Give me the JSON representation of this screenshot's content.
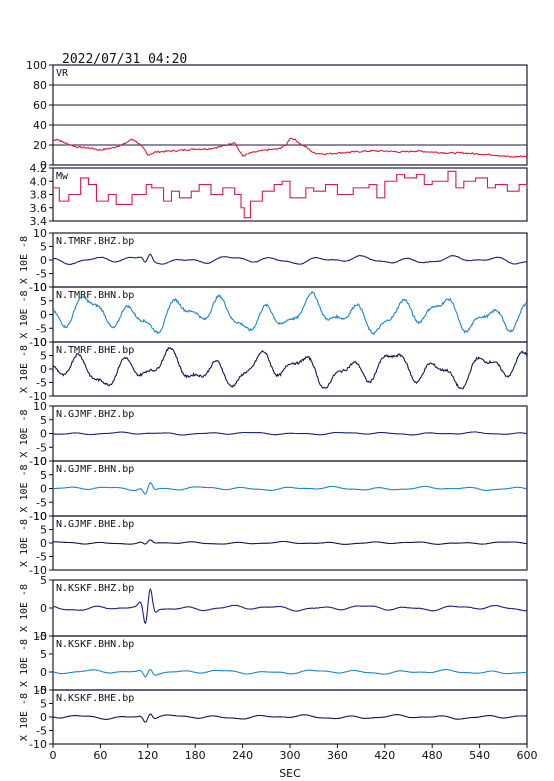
{
  "header": {
    "datetime": "2022/07/31 04:20"
  },
  "chart_data": {
    "type": "line",
    "xlabel": "SEC",
    "xlim": [
      0,
      600
    ],
    "xticks": [
      0,
      60,
      120,
      180,
      240,
      300,
      360,
      420,
      480,
      540,
      600
    ],
    "panels": [
      {
        "name": "VR",
        "ylabel": "",
        "ylim": [
          0,
          100
        ],
        "yticks": [
          0,
          20,
          40,
          60,
          80,
          100
        ],
        "ytick_labels": [
          "0",
          "20",
          "40",
          "60",
          "80",
          "100"
        ],
        "grid": true,
        "color": "#d81b46",
        "step": false,
        "x": [
          0,
          5,
          15,
          30,
          45,
          60,
          75,
          90,
          100,
          108,
          115,
          120,
          130,
          150,
          165,
          180,
          195,
          210,
          220,
          230,
          235,
          240,
          250,
          270,
          285,
          295,
          300,
          305,
          315,
          320,
          330,
          345,
          360,
          380,
          400,
          420,
          440,
          460,
          480,
          500,
          520,
          540,
          560,
          580,
          600
        ],
        "values": [
          24,
          26,
          22,
          18,
          17,
          15,
          17,
          21,
          26,
          22,
          16,
          10,
          13,
          14,
          15,
          16,
          16,
          18,
          20,
          23,
          15,
          9,
          12,
          15,
          16,
          20,
          27,
          26,
          20,
          18,
          12,
          11,
          12,
          13,
          14,
          14,
          13,
          14,
          13,
          12,
          12,
          11,
          10,
          8,
          9
        ]
      },
      {
        "name": "Mw",
        "ylabel": "",
        "ylim": [
          3.4,
          4.2
        ],
        "yticks": [
          3.4,
          3.6,
          3.8,
          4.0,
          4.2
        ],
        "ytick_labels": [
          "3.4",
          "3.6",
          "3.8",
          "4.0",
          "4.2"
        ],
        "grid": false,
        "color": "#d81b46",
        "step": true,
        "x": [
          0,
          8,
          20,
          35,
          45,
          55,
          70,
          80,
          100,
          118,
          125,
          140,
          150,
          160,
          175,
          185,
          200,
          215,
          230,
          238,
          242,
          250,
          265,
          280,
          290,
          300,
          320,
          330,
          345,
          360,
          380,
          400,
          410,
          420,
          435,
          445,
          460,
          470,
          480,
          500,
          510,
          520,
          535,
          550,
          560,
          575,
          590,
          600
        ],
        "values": [
          3.9,
          3.7,
          3.8,
          4.05,
          3.95,
          3.7,
          3.8,
          3.65,
          3.8,
          3.95,
          3.9,
          3.7,
          3.85,
          3.75,
          3.85,
          3.95,
          3.8,
          3.9,
          3.8,
          3.6,
          3.45,
          3.7,
          3.85,
          3.95,
          4.0,
          3.75,
          3.9,
          3.85,
          3.95,
          3.8,
          3.9,
          3.95,
          3.75,
          4.0,
          4.1,
          4.05,
          4.1,
          3.95,
          4.0,
          4.15,
          3.9,
          4.0,
          4.05,
          3.9,
          3.95,
          3.85,
          3.95,
          3.9
        ]
      },
      {
        "name": "N.TMRF.BHZ.bp",
        "ylabel": "X 10E -8",
        "ylim": [
          -10,
          10
        ],
        "yticks": [
          -10,
          -5,
          0,
          5,
          10
        ],
        "ytick_labels": [
          "-10",
          "-5",
          "0",
          "5",
          "10"
        ],
        "color": "#1a237e",
        "amplitude": 1.5,
        "pulse_at": 120,
        "pulse_amp": 2
      },
      {
        "name": "N.TMRF.BHN.bp",
        "ylabel": "X 10E -8",
        "ylim": [
          -10,
          10
        ],
        "yticks": [
          -10,
          -5,
          0,
          5,
          10
        ],
        "ytick_labels": [
          "-10",
          "-5",
          "0",
          "5",
          "10"
        ],
        "color": "#1e88c8",
        "amplitude": 7,
        "pulse_at": 0,
        "pulse_amp": 0
      },
      {
        "name": "N.TMRF.BHE.bp",
        "ylabel": "X 10E -8",
        "ylim": [
          -10,
          10
        ],
        "yticks": [
          -10,
          -5,
          0,
          5,
          10
        ],
        "ytick_labels": [
          "-10",
          "-5",
          "0",
          "5",
          "10"
        ],
        "color": "#0d1b4f",
        "amplitude": 7,
        "pulse_at": 0,
        "pulse_amp": 0
      },
      {
        "name": "N.GJMF.BHZ.bp",
        "ylabel": "X 10E -8",
        "ylim": [
          -10,
          10
        ],
        "yticks": [
          -10,
          -5,
          0,
          5,
          10
        ],
        "ytick_labels": [
          "-10",
          "-5",
          "0",
          "5",
          "10"
        ],
        "color": "#1a237e",
        "amplitude": 0.5,
        "pulse_at": 0,
        "pulse_amp": 0
      },
      {
        "name": "N.GJMF.BHN.bp",
        "ylabel": "X 10E -8",
        "ylim": [
          -10,
          10
        ],
        "yticks": [
          -10,
          -5,
          0,
          5,
          10
        ],
        "ytick_labels": [
          "-10",
          "-5",
          "0",
          "5",
          "10"
        ],
        "color": "#1e88c8",
        "amplitude": 0.7,
        "pulse_at": 120,
        "pulse_amp": 2.5
      },
      {
        "name": "N.GJMF.BHE.bp",
        "ylabel": "X 10E -8",
        "ylim": [
          -10,
          10
        ],
        "yticks": [
          -10,
          -5,
          0,
          5,
          10
        ],
        "ytick_labels": [
          "-10",
          "-5",
          "0",
          "5",
          "10"
        ],
        "color": "#0d1b4f",
        "amplitude": 0.5,
        "pulse_at": 120,
        "pulse_amp": 1
      },
      {
        "name": "N.KSKF.BHZ.bp",
        "ylabel": "X 10E -8",
        "ylim": [
          -5,
          5
        ],
        "yticks": [
          -5,
          0,
          5
        ],
        "ytick_labels": [
          "-5",
          "0",
          "5"
        ],
        "color": "#1a237e",
        "amplitude": 0.5,
        "pulse_at": 120,
        "pulse_amp": 4
      },
      {
        "name": "N.KSKF.BHN.bp",
        "ylabel": "X 10E -8",
        "ylim": [
          -5,
          10
        ],
        "yticks": [
          -5,
          0,
          5,
          10
        ],
        "ytick_labels": [
          "-5",
          "0",
          "5",
          "10"
        ],
        "color": "#1e88c8",
        "amplitude": 0.6,
        "pulse_at": 120,
        "pulse_amp": 1.5
      },
      {
        "name": "N.KSKF.BHE.bp",
        "ylabel": "X 10E -8",
        "ylim": [
          -10,
          10
        ],
        "yticks": [
          -10,
          -5,
          0,
          5,
          10
        ],
        "ytick_labels": [
          "-10",
          "-5",
          "0",
          "5",
          "10"
        ],
        "color": "#0d1b4f",
        "amplitude": 0.8,
        "pulse_at": 120,
        "pulse_amp": 2
      }
    ]
  }
}
